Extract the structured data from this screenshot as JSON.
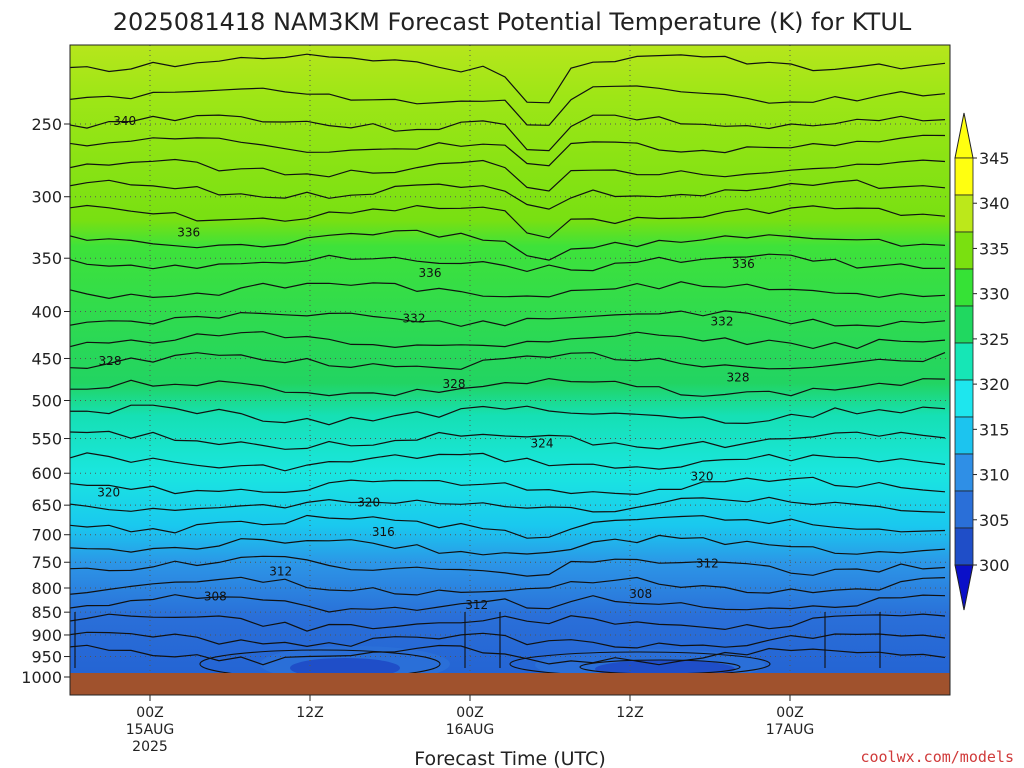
{
  "chart_data": {
    "type": "heatmap",
    "title": "2025081418 NAM3KM Forecast Potential Temperature (K) for KTUL",
    "xlabel": "Forecast Time (UTC)",
    "ylabel": "",
    "y_scale": "log-pressure (inverted)",
    "ylim_hPa": [
      1000,
      200
    ],
    "yticks": [
      "250",
      "300",
      "350",
      "400",
      "450",
      "500",
      "550",
      "600",
      "650",
      "700",
      "750",
      "800",
      "850",
      "900",
      "950",
      "1000"
    ],
    "x_range_hours_from_init": [
      0,
      66
    ],
    "xticks": [
      {
        "hour": 6,
        "lines": [
          "00Z",
          "15AUG",
          "2025"
        ]
      },
      {
        "hour": 18,
        "lines": [
          "12Z"
        ]
      },
      {
        "hour": 30,
        "lines": [
          "00Z",
          "16AUG"
        ]
      },
      {
        "hour": 42,
        "lines": [
          "12Z"
        ]
      },
      {
        "hour": 54,
        "lines": [
          "00Z",
          "17AUG"
        ]
      }
    ],
    "grid": true,
    "colorbar": {
      "levels": [
        300,
        305,
        310,
        315,
        320,
        325,
        330,
        335,
        340,
        345
      ],
      "colors": [
        "#1f4ec8",
        "#2a6fd8",
        "#2f8fe6",
        "#1cc4ef",
        "#1ee6ee",
        "#16e6b6",
        "#20d860",
        "#36e236",
        "#7ae010",
        "#bce81a",
        "#ffff10"
      ],
      "under_color": "#0a10c8",
      "over_color": "#ffff10"
    },
    "contour_interval_K": 4,
    "contour_labels": [
      {
        "value": "340",
        "hour": 4.1,
        "p": 248
      },
      {
        "value": "336",
        "hour": 8.9,
        "p": 328
      },
      {
        "value": "336",
        "hour": 27.0,
        "p": 363
      },
      {
        "value": "336",
        "hour": 50.5,
        "p": 355
      },
      {
        "value": "332",
        "hour": 25.8,
        "p": 407
      },
      {
        "value": "332",
        "hour": 48.9,
        "p": 410
      },
      {
        "value": "328",
        "hour": 3.0,
        "p": 453
      },
      {
        "value": "328",
        "hour": 28.8,
        "p": 480
      },
      {
        "value": "328",
        "hour": 50.1,
        "p": 472
      },
      {
        "value": "324",
        "hour": 35.4,
        "p": 557
      },
      {
        "value": "320",
        "hour": 2.9,
        "p": 630
      },
      {
        "value": "320",
        "hour": 22.4,
        "p": 646
      },
      {
        "value": "320",
        "hour": 47.4,
        "p": 605
      },
      {
        "value": "316",
        "hour": 23.5,
        "p": 695
      },
      {
        "value": "312",
        "hour": 15.8,
        "p": 768
      },
      {
        "value": "312",
        "hour": 47.8,
        "p": 752
      },
      {
        "value": "312",
        "hour": 30.5,
        "p": 835
      },
      {
        "value": "308",
        "hour": 10.9,
        "p": 817
      },
      {
        "value": "308",
        "hour": 42.8,
        "p": 812
      }
    ],
    "ground_color": "#a0522d",
    "terrain_surface_hPa": 990
  },
  "watermark": "coolwx.com/models"
}
